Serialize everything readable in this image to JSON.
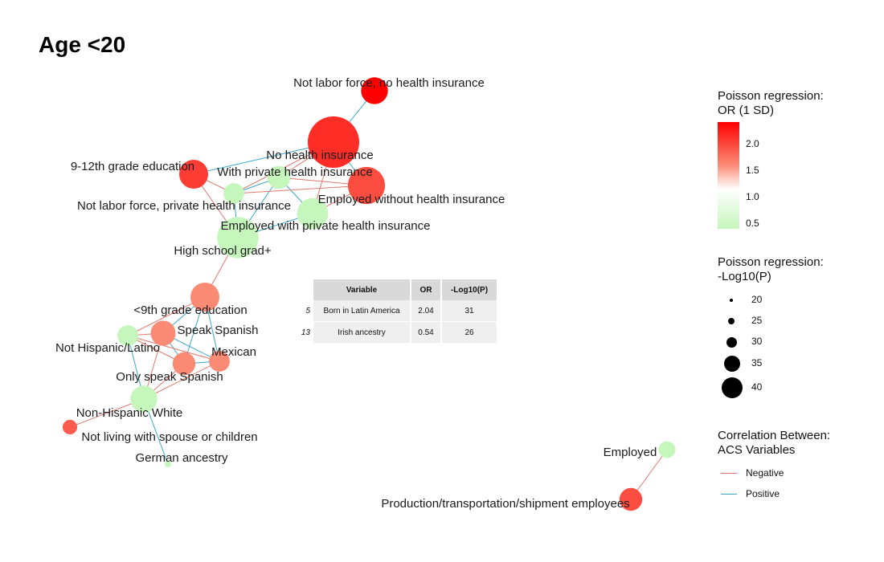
{
  "title": "Age <20",
  "colors": {
    "negative_edge": "#e07a6f",
    "positive_edge": "#3aa7c9",
    "or_high": "#ff0000",
    "or_mid": "#ffffff",
    "or_low": "#c5f6bc"
  },
  "network": {
    "nodes": [
      {
        "id": "nlf_no_ins",
        "label": "Not labor force, no health insurance",
        "or": 2.4,
        "neglog10p": 28
      },
      {
        "id": "no_ins",
        "label": "No health insurance",
        "or": 2.1,
        "neglog10p": 40
      },
      {
        "id": "with_priv",
        "label": "With private health insurance",
        "or": 0.5,
        "neglog10p": 26
      },
      {
        "id": "emp_no_ins",
        "label": "Employed without health insurance",
        "or": 1.9,
        "neglog10p": 33
      },
      {
        "id": "g912",
        "label": "9-12th grade education",
        "or": 2.0,
        "neglog10p": 29
      },
      {
        "id": "nlf_priv",
        "label": "Not labor force, private health insurance",
        "or": 0.5,
        "neglog10p": 25
      },
      {
        "id": "emp_priv",
        "label": "Employed with private health insurance",
        "or": 0.5,
        "neglog10p": 30
      },
      {
        "id": "hs_grad",
        "label": "High school grad+",
        "or": 0.5,
        "neglog10p": 35
      },
      {
        "id": "lt9",
        "label": "<9th grade education",
        "or": 1.5,
        "neglog10p": 29
      },
      {
        "id": "not_hisp",
        "label": "Not Hispanic/Latino",
        "or": 0.5,
        "neglog10p": 25
      },
      {
        "id": "speak_sp",
        "label": "Speak Spanish",
        "or": 1.5,
        "neglog10p": 27
      },
      {
        "id": "mexican",
        "label": "Mexican",
        "or": 1.5,
        "neglog10p": 25
      },
      {
        "id": "only_sp",
        "label": "Only speak Spanish",
        "or": 1.5,
        "neglog10p": 26
      },
      {
        "id": "nh_white",
        "label": "Non-Hispanic White",
        "or": 0.5,
        "neglog10p": 28
      },
      {
        "id": "not_living",
        "label": "Not living with spouse or children",
        "or": 1.8,
        "neglog10p": 22
      },
      {
        "id": "german",
        "label": "German ancestry",
        "or": 0.5,
        "neglog10p": 18
      },
      {
        "id": "employed",
        "label": "Employed",
        "or": 0.5,
        "neglog10p": 23
      },
      {
        "id": "prod_trans",
        "label": "Production/transportation/shipment employees",
        "or": 1.9,
        "neglog10p": 26
      }
    ],
    "edges": [
      {
        "from": "nlf_no_ins",
        "to": "no_ins",
        "sign": "Positive"
      },
      {
        "from": "no_ins",
        "to": "emp_no_ins",
        "sign": "Positive"
      },
      {
        "from": "no_ins",
        "to": "with_priv",
        "sign": "Negative"
      },
      {
        "from": "no_ins",
        "to": "g912",
        "sign": "Positive"
      },
      {
        "from": "no_ins",
        "to": "nlf_priv",
        "sign": "Negative"
      },
      {
        "from": "no_ins",
        "to": "emp_priv",
        "sign": "Negative"
      },
      {
        "from": "with_priv",
        "to": "nlf_priv",
        "sign": "Positive"
      },
      {
        "from": "with_priv",
        "to": "emp_priv",
        "sign": "Positive"
      },
      {
        "from": "with_priv",
        "to": "emp_no_ins",
        "sign": "Negative"
      },
      {
        "from": "with_priv",
        "to": "hs_grad",
        "sign": "Positive"
      },
      {
        "from": "nlf_priv",
        "to": "emp_no_ins",
        "sign": "Negative"
      },
      {
        "from": "nlf_priv",
        "to": "g912",
        "sign": "Negative"
      },
      {
        "from": "nlf_priv",
        "to": "hs_grad",
        "sign": "Positive"
      },
      {
        "from": "g912",
        "to": "hs_grad",
        "sign": "Negative"
      },
      {
        "from": "emp_priv",
        "to": "emp_no_ins",
        "sign": "Negative"
      },
      {
        "from": "emp_priv",
        "to": "hs_grad",
        "sign": "Positive"
      },
      {
        "from": "hs_grad",
        "to": "lt9",
        "sign": "Negative"
      },
      {
        "from": "lt9",
        "to": "speak_sp",
        "sign": "Positive"
      },
      {
        "from": "lt9",
        "to": "mexican",
        "sign": "Positive"
      },
      {
        "from": "lt9",
        "to": "only_sp",
        "sign": "Positive"
      },
      {
        "from": "lt9",
        "to": "not_hisp",
        "sign": "Negative"
      },
      {
        "from": "speak_sp",
        "to": "mexican",
        "sign": "Positive"
      },
      {
        "from": "speak_sp",
        "to": "only_sp",
        "sign": "Positive"
      },
      {
        "from": "speak_sp",
        "to": "not_hisp",
        "sign": "Negative"
      },
      {
        "from": "mexican",
        "to": "only_sp",
        "sign": "Positive"
      },
      {
        "from": "mexican",
        "to": "not_hisp",
        "sign": "Negative"
      },
      {
        "from": "mexican",
        "to": "nh_white",
        "sign": "Negative"
      },
      {
        "from": "only_sp",
        "to": "nh_white",
        "sign": "Negative"
      },
      {
        "from": "not_hisp",
        "to": "only_sp",
        "sign": "Negative"
      },
      {
        "from": "not_hisp",
        "to": "nh_white",
        "sign": "Positive"
      },
      {
        "from": "speak_sp",
        "to": "nh_white",
        "sign": "Negative"
      },
      {
        "from": "nh_white",
        "to": "not_living",
        "sign": "Negative"
      },
      {
        "from": "nh_white",
        "to": "german",
        "sign": "Positive"
      },
      {
        "from": "employed",
        "to": "prod_trans",
        "sign": "Negative"
      }
    ]
  },
  "table": {
    "headers": {
      "variable": "Variable",
      "or": "OR",
      "p": "-Log10(P)"
    },
    "rows": [
      {
        "index": "5",
        "variable": "Born in Latin America",
        "or": "2.04",
        "p": "31"
      },
      {
        "index": "13",
        "variable": "Irish ancestry",
        "or": "0.54",
        "p": "26"
      }
    ]
  },
  "legend_color": {
    "title_line1": "Poisson regression:",
    "title_line2": "OR (1 SD)",
    "ticks": [
      "2.0",
      "1.5",
      "1.0",
      "0.5"
    ],
    "tick_values": [
      2.0,
      1.5,
      1.0,
      0.5
    ]
  },
  "legend_size": {
    "title_line1": "Poisson regression:",
    "title_line2": "-Log10(P)",
    "ticks": [
      "20",
      "25",
      "30",
      "35",
      "40"
    ],
    "tick_values": [
      20,
      25,
      30,
      35,
      40
    ]
  },
  "legend_corr": {
    "title_line1": "Correlation Between:",
    "title_line2": "ACS Variables",
    "items": [
      {
        "label": "Negative"
      },
      {
        "label": "Positive"
      }
    ]
  }
}
